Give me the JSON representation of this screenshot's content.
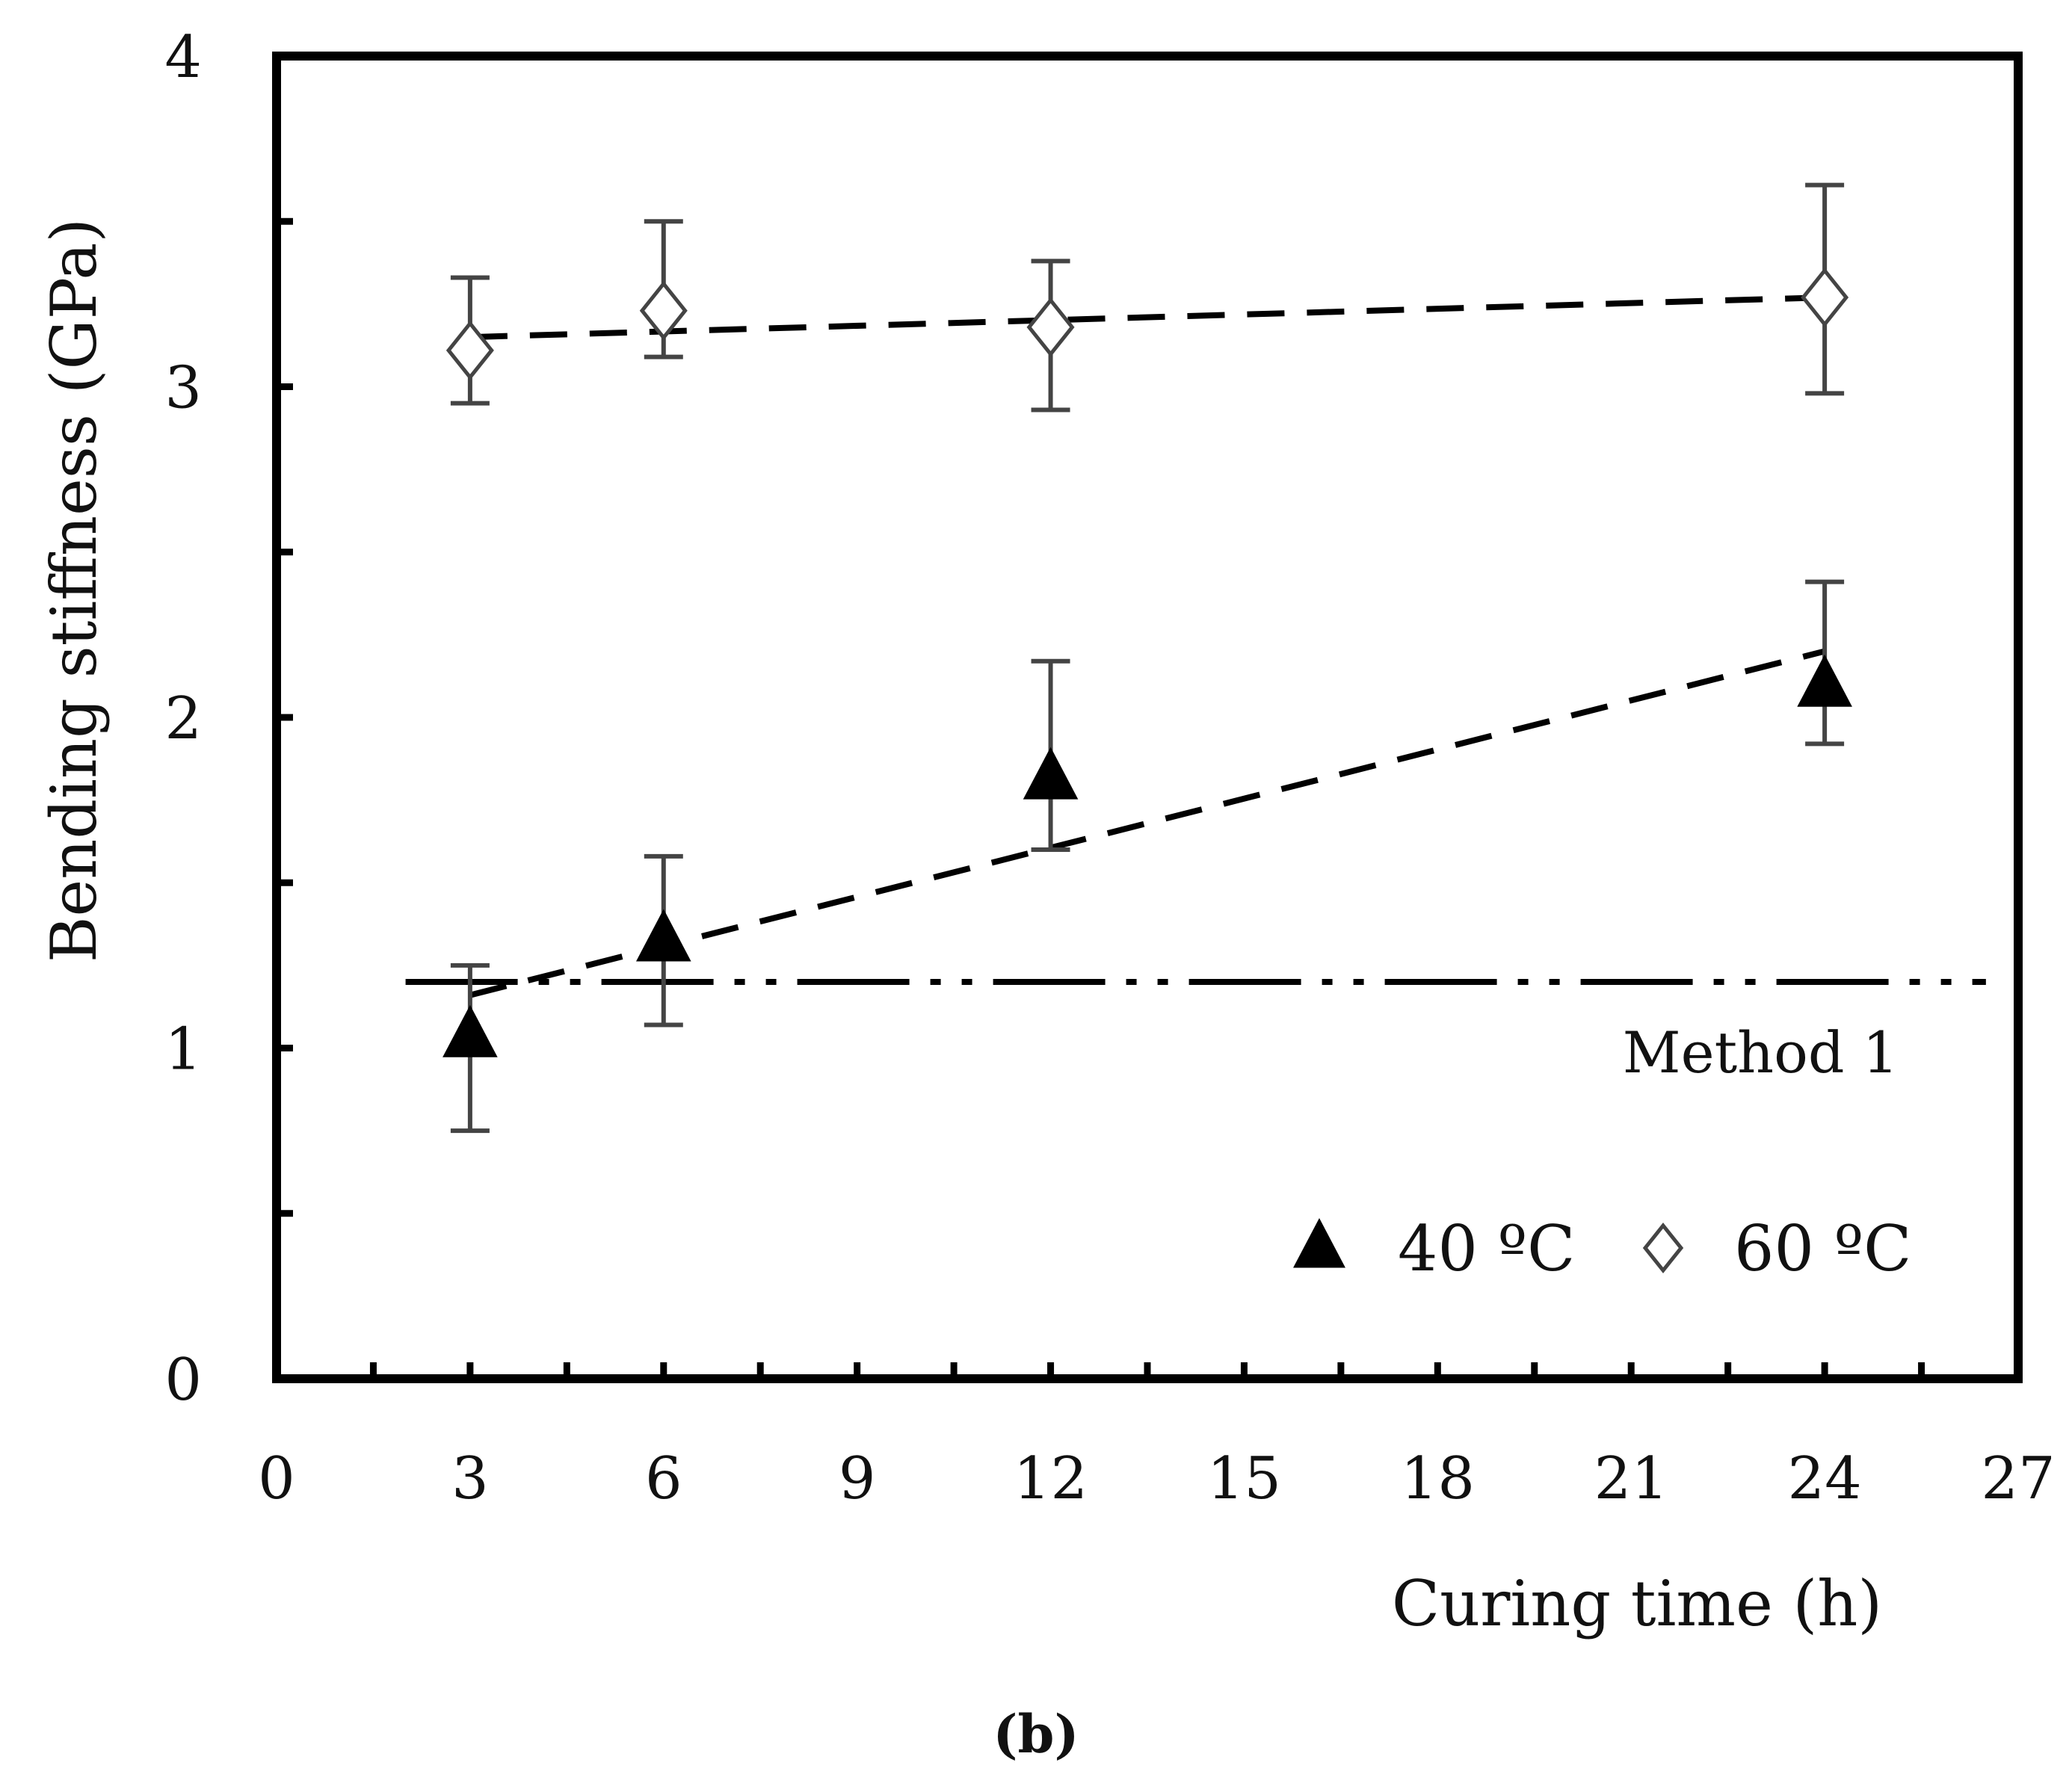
{
  "chart_data": {
    "type": "scatter",
    "title": "",
    "xlabel": "Curing time (h)",
    "ylabel": "Bending stiffness (GPa)",
    "xlim": [
      0,
      27
    ],
    "ylim": [
      0,
      4
    ],
    "x_ticks": [
      0,
      3,
      6,
      9,
      12,
      15,
      18,
      21,
      24,
      27
    ],
    "y_ticks": [
      0,
      1,
      2,
      3,
      4
    ],
    "grid": false,
    "legend_position": "bottom-right",
    "series": [
      {
        "name": "40 ºC",
        "marker": "filled-triangle",
        "points": [
          {
            "x": 3,
            "y": 1.04,
            "err_low": 0.29,
            "err_high": 0.21
          },
          {
            "x": 6,
            "y": 1.33,
            "err_low": 0.26,
            "err_high": 0.25
          },
          {
            "x": 12,
            "y": 1.82,
            "err_low": 0.22,
            "err_high": 0.35
          },
          {
            "x": 24,
            "y": 2.1,
            "err_low": 0.18,
            "err_high": 0.31
          }
        ],
        "trend": {
          "style": "dashed",
          "x": [
            3,
            24
          ],
          "y": [
            1.16,
            2.2
          ]
        }
      },
      {
        "name": "60 ºC",
        "marker": "open-diamond",
        "points": [
          {
            "x": 3,
            "y": 3.11,
            "err_low": 0.16,
            "err_high": 0.22
          },
          {
            "x": 6,
            "y": 3.23,
            "err_low": 0.14,
            "err_high": 0.27
          },
          {
            "x": 12,
            "y": 3.18,
            "err_low": 0.25,
            "err_high": 0.2
          },
          {
            "x": 24,
            "y": 3.27,
            "err_low": 0.29,
            "err_high": 0.34
          }
        ],
        "trend": {
          "style": "dashed",
          "x": [
            3,
            24
          ],
          "y": [
            3.15,
            3.27
          ]
        }
      }
    ],
    "reference_line": {
      "label": "Method 1",
      "y": 1.2,
      "x": [
        2,
        26.5
      ],
      "style": "dash-dot-dot"
    },
    "caption": "(b)"
  }
}
